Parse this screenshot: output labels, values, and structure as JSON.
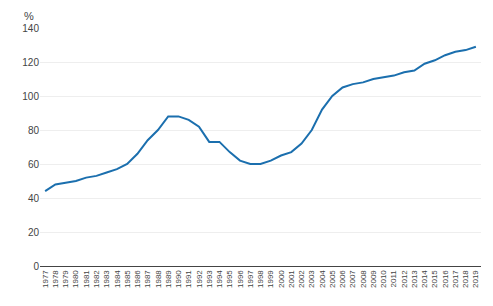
{
  "chart_data": {
    "type": "line",
    "ylabel": "%",
    "x": [
      1977,
      1978,
      1979,
      1980,
      1981,
      1982,
      1983,
      1984,
      1985,
      1986,
      1987,
      1988,
      1989,
      1990,
      1991,
      1992,
      1993,
      1994,
      1995,
      1996,
      1997,
      1998,
      1999,
      2000,
      2001,
      2002,
      2003,
      2004,
      2005,
      2006,
      2007,
      2008,
      2009,
      2010,
      2011,
      2012,
      2013,
      2014,
      2015,
      2016,
      2017,
      2018,
      2019
    ],
    "values": [
      44,
      48,
      49,
      50,
      52,
      53,
      55,
      57,
      60,
      66,
      74,
      80,
      88,
      88,
      86,
      82,
      73,
      73,
      67,
      62,
      60,
      60,
      62,
      65,
      67,
      72,
      80,
      92,
      100,
      105,
      107,
      108,
      110,
      111,
      112,
      114,
      115,
      119,
      121,
      124,
      126,
      127,
      129
    ],
    "color": "#1B6FAE",
    "xlim": [
      1976.5,
      2019.5
    ],
    "xticks": [
      1977,
      1978,
      1979,
      1980,
      1981,
      1982,
      1983,
      1984,
      1985,
      1986,
      1987,
      1988,
      1989,
      1990,
      1991,
      1992,
      1993,
      1994,
      1995,
      1996,
      1997,
      1998,
      1999,
      2000,
      2001,
      2002,
      2003,
      2004,
      2005,
      2006,
      2007,
      2008,
      2009,
      2010,
      2011,
      2012,
      2013,
      2014,
      2015,
      2016,
      2017,
      2018,
      2019
    ],
    "ylim": [
      0,
      140
    ],
    "yticks": [
      0,
      20,
      40,
      60,
      80,
      100,
      120,
      140
    ],
    "grid": true
  }
}
